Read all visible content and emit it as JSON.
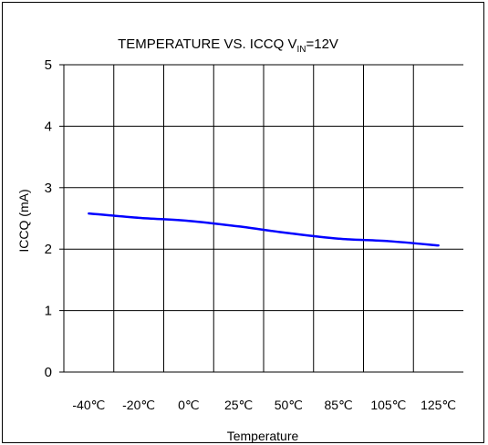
{
  "chart_data": {
    "type": "line",
    "title": {
      "main": "TEMPERATURE VS. ICCQ V",
      "sub": "IN",
      "tail": "=12V"
    },
    "xlabel": "Temperature",
    "ylabel": "ICCQ (mA)",
    "categories": [
      "-40℃",
      "-20℃",
      "0℃",
      "25℃",
      "50℃",
      "85℃",
      "105℃",
      "125℃"
    ],
    "ylim": [
      0,
      5
    ],
    "yticks": [
      "0",
      "1",
      "2",
      "3",
      "4",
      "5"
    ],
    "grid": true,
    "series": [
      {
        "color": "#0000ff",
        "values": [
          2.58,
          2.51,
          2.46,
          2.37,
          2.26,
          2.17,
          2.13,
          2.06
        ]
      }
    ]
  }
}
